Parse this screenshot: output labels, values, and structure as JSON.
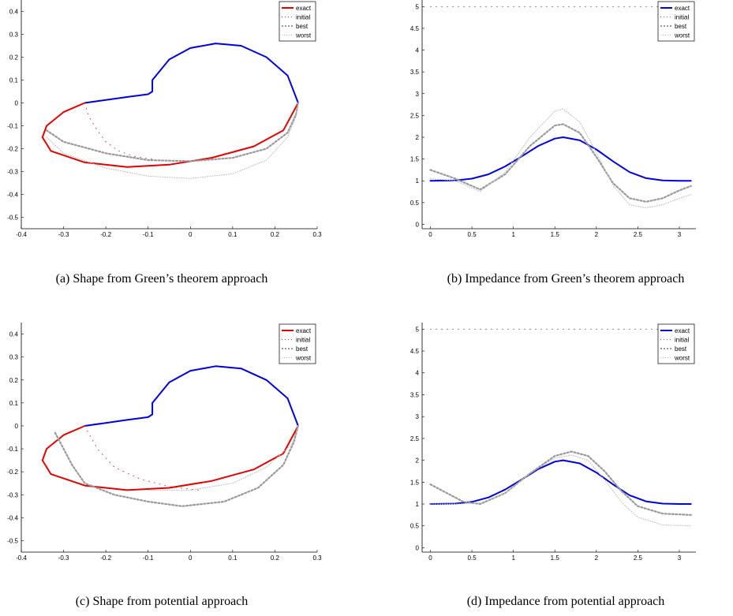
{
  "chart_data": [
    {
      "type": "line",
      "kind": "shape",
      "caption": "(a) Shape from Green’s theorem approach",
      "xlim": [
        -0.4,
        0.3
      ],
      "ylim": [
        -0.55,
        0.45
      ],
      "xticks": [
        "-0.4",
        "-0.3",
        "-0.2",
        "-0.1",
        "0",
        "0.1",
        "0.2",
        "0.3"
      ],
      "yticks": [
        "0.4",
        "0.3",
        "0.2",
        "0.1",
        "0",
        "-0.1",
        "-0.2",
        "-0.3",
        "-0.4",
        "-0.5"
      ],
      "legend": [
        "exact",
        "initial",
        "best",
        "worst"
      ],
      "legend_position": "top-right",
      "colors": {
        "exact_top": "#0000dd",
        "exact_bottom": "#e00000",
        "initial": "#cc3333",
        "best": "#999999",
        "worst": "#bbbbbb"
      },
      "series": [
        {
          "name": "exact",
          "x_upper": [
            -0.25,
            -0.2,
            -0.15,
            -0.1,
            -0.09,
            -0.09,
            -0.05,
            0.0,
            0.06,
            0.12,
            0.18,
            0.23,
            0.255
          ],
          "y_upper": [
            0.0,
            0.013,
            0.026,
            0.038,
            0.05,
            0.1,
            0.19,
            0.24,
            0.26,
            0.25,
            0.2,
            0.12,
            0.0
          ],
          "x_lower": [
            -0.25,
            -0.3,
            -0.34,
            -0.35,
            -0.33,
            -0.25,
            -0.15,
            -0.05,
            0.05,
            0.15,
            0.22,
            0.255
          ],
          "y_lower": [
            0.0,
            -0.04,
            -0.1,
            -0.15,
            -0.21,
            -0.26,
            -0.28,
            -0.27,
            -0.24,
            -0.19,
            -0.12,
            0.0
          ]
        },
        {
          "name": "initial",
          "x": [
            -0.25,
            -0.24,
            -0.22,
            -0.2,
            -0.17,
            -0.13,
            -0.09
          ],
          "y": [
            0.0,
            -0.06,
            -0.12,
            -0.17,
            -0.21,
            -0.235,
            -0.245
          ]
        },
        {
          "name": "best",
          "x": [
            -0.34,
            -0.3,
            -0.2,
            -0.1,
            0.0,
            0.1,
            0.18,
            0.23,
            0.25,
            0.255
          ],
          "y": [
            -0.12,
            -0.17,
            -0.22,
            -0.25,
            -0.255,
            -0.24,
            -0.2,
            -0.13,
            -0.05,
            0.0
          ]
        },
        {
          "name": "worst",
          "x": [
            -0.34,
            -0.3,
            -0.2,
            -0.1,
            0.0,
            0.1,
            0.18,
            0.23,
            0.25,
            0.255
          ],
          "y": [
            -0.15,
            -0.22,
            -0.285,
            -0.32,
            -0.33,
            -0.31,
            -0.25,
            -0.15,
            -0.06,
            0.0
          ]
        }
      ]
    },
    {
      "type": "line",
      "kind": "impedance",
      "caption": "(b) Impedance from Green’s theorem approach",
      "xlim": [
        -0.1,
        3.2
      ],
      "ylim": [
        -0.1,
        5.15
      ],
      "xticks": [
        "0",
        "0.5",
        "1",
        "1.5",
        "2",
        "2.5",
        "3"
      ],
      "yticks": [
        "5",
        "4.5",
        "4",
        "3.5",
        "3",
        "2.5",
        "2",
        "1.5",
        "1",
        "0.5",
        "0"
      ],
      "legend": [
        "exact",
        "initial",
        "best",
        "worst"
      ],
      "legend_position": "top-right",
      "colors": {
        "exact": "#0000dd",
        "initial": "#666666",
        "best": "#999999",
        "worst": "#bbbbbb"
      },
      "series": [
        {
          "name": "exact",
          "x": [
            0,
            0.3,
            0.5,
            0.7,
            0.9,
            1.1,
            1.3,
            1.5,
            1.6,
            1.8,
            2.0,
            2.2,
            2.4,
            2.6,
            2.8,
            3.0,
            3.14
          ],
          "y": [
            1.0,
            1.01,
            1.05,
            1.15,
            1.33,
            1.56,
            1.8,
            1.97,
            2.0,
            1.93,
            1.72,
            1.45,
            1.2,
            1.06,
            1.01,
            1.0,
            1.0
          ]
        },
        {
          "name": "initial",
          "x": [
            0,
            3.14
          ],
          "y": [
            5.0,
            5.0
          ]
        },
        {
          "name": "best",
          "x": [
            0,
            0.3,
            0.6,
            0.9,
            1.2,
            1.5,
            1.6,
            1.8,
            2.0,
            2.2,
            2.4,
            2.6,
            2.8,
            3.0,
            3.14
          ],
          "y": [
            1.25,
            1.05,
            0.8,
            1.15,
            1.8,
            2.27,
            2.3,
            2.1,
            1.55,
            0.95,
            0.6,
            0.52,
            0.6,
            0.78,
            0.88
          ]
        },
        {
          "name": "worst",
          "x": [
            0,
            0.3,
            0.6,
            0.9,
            1.2,
            1.5,
            1.6,
            1.8,
            2.0,
            2.2,
            2.4,
            2.6,
            2.8,
            3.0,
            3.14
          ],
          "y": [
            1.05,
            1.0,
            0.75,
            1.2,
            2.0,
            2.6,
            2.65,
            2.35,
            1.65,
            0.9,
            0.45,
            0.38,
            0.45,
            0.6,
            0.68
          ]
        }
      ]
    },
    {
      "type": "line",
      "kind": "shape",
      "caption": "(c) Shape from potential approach",
      "xlim": [
        -0.4,
        0.3
      ],
      "ylim": [
        -0.55,
        0.45
      ],
      "xticks": [
        "-0.4",
        "-0.3",
        "-0.2",
        "-0.1",
        "0",
        "0.1",
        "0.2",
        "0.3"
      ],
      "yticks": [
        "0.4",
        "0.3",
        "0.2",
        "0.1",
        "0",
        "-0.1",
        "-0.2",
        "-0.3",
        "-0.4",
        "-0.5"
      ],
      "legend": [
        "exact",
        "initial",
        "best",
        "worst"
      ],
      "legend_position": "top-right",
      "colors": {
        "exact_top": "#0000dd",
        "exact_bottom": "#e00000",
        "initial": "#cc3333",
        "best": "#999999",
        "worst": "#bbbbbb"
      },
      "series": [
        {
          "name": "exact",
          "x_upper": [
            -0.25,
            -0.2,
            -0.15,
            -0.1,
            -0.09,
            -0.09,
            -0.05,
            0.0,
            0.06,
            0.12,
            0.18,
            0.23,
            0.255
          ],
          "y_upper": [
            0.0,
            0.013,
            0.026,
            0.038,
            0.05,
            0.1,
            0.19,
            0.24,
            0.26,
            0.25,
            0.2,
            0.12,
            0.0
          ],
          "x_lower": [
            -0.25,
            -0.3,
            -0.34,
            -0.35,
            -0.33,
            -0.25,
            -0.15,
            -0.05,
            0.05,
            0.15,
            0.22,
            0.255
          ],
          "y_lower": [
            0.0,
            -0.04,
            -0.1,
            -0.15,
            -0.21,
            -0.26,
            -0.28,
            -0.27,
            -0.24,
            -0.19,
            -0.12,
            0.0
          ]
        },
        {
          "name": "initial",
          "x": [
            -0.25,
            -0.22,
            -0.18,
            -0.12,
            -0.05,
            0.02
          ],
          "y": [
            0.0,
            -0.1,
            -0.18,
            -0.23,
            -0.265,
            -0.28
          ]
        },
        {
          "name": "best",
          "x": [
            -0.32,
            -0.3,
            -0.28,
            -0.25,
            -0.18,
            -0.1,
            -0.02,
            0.08,
            0.16,
            0.22,
            0.245,
            0.255
          ],
          "y": [
            -0.03,
            -0.1,
            -0.17,
            -0.25,
            -0.3,
            -0.33,
            -0.35,
            -0.33,
            -0.27,
            -0.17,
            -0.07,
            0.0
          ]
        },
        {
          "name": "worst",
          "x": [
            -0.1,
            0.0,
            0.1,
            0.18,
            0.24,
            0.255
          ],
          "y": [
            -0.28,
            -0.28,
            -0.25,
            -0.18,
            -0.08,
            0.0
          ]
        }
      ]
    },
    {
      "type": "line",
      "kind": "impedance",
      "caption": "(d) Impedance from potential approach",
      "xlim": [
        -0.1,
        3.2
      ],
      "ylim": [
        -0.1,
        5.15
      ],
      "xticks": [
        "0",
        "0.5",
        "1",
        "1.5",
        "2",
        "2.5",
        "3"
      ],
      "yticks": [
        "5",
        "4.5",
        "4",
        "3.5",
        "3",
        "2.5",
        "2",
        "1.5",
        "1",
        "0.5",
        "0"
      ],
      "legend": [
        "exact",
        "initial",
        "best",
        "worst"
      ],
      "legend_position": "top-right",
      "colors": {
        "exact": "#0000dd",
        "initial": "#666666",
        "best": "#999999",
        "worst": "#bbbbbb"
      },
      "series": [
        {
          "name": "exact",
          "x": [
            0,
            0.3,
            0.5,
            0.7,
            0.9,
            1.1,
            1.3,
            1.5,
            1.6,
            1.8,
            2.0,
            2.2,
            2.4,
            2.6,
            2.8,
            3.0,
            3.14
          ],
          "y": [
            1.0,
            1.01,
            1.05,
            1.15,
            1.33,
            1.56,
            1.8,
            1.97,
            2.0,
            1.93,
            1.72,
            1.45,
            1.2,
            1.06,
            1.01,
            1.0,
            1.0
          ]
        },
        {
          "name": "initial",
          "x": [
            0,
            3.14
          ],
          "y": [
            5.0,
            5.0
          ]
        },
        {
          "name": "best",
          "x": [
            0,
            0.2,
            0.4,
            0.6,
            0.9,
            1.2,
            1.5,
            1.7,
            1.9,
            2.1,
            2.3,
            2.5,
            2.8,
            3.14
          ],
          "y": [
            1.45,
            1.25,
            1.05,
            1.0,
            1.25,
            1.7,
            2.1,
            2.2,
            2.1,
            1.75,
            1.3,
            0.95,
            0.78,
            0.75
          ]
        },
        {
          "name": "worst",
          "x": [
            0,
            0.3,
            0.6,
            0.9,
            1.2,
            1.5,
            1.7,
            1.9,
            2.1,
            2.3,
            2.5,
            2.8,
            3.14
          ],
          "y": [
            1.0,
            1.0,
            1.02,
            1.25,
            1.7,
            2.05,
            2.12,
            2.0,
            1.55,
            1.05,
            0.7,
            0.52,
            0.5
          ]
        }
      ]
    }
  ]
}
